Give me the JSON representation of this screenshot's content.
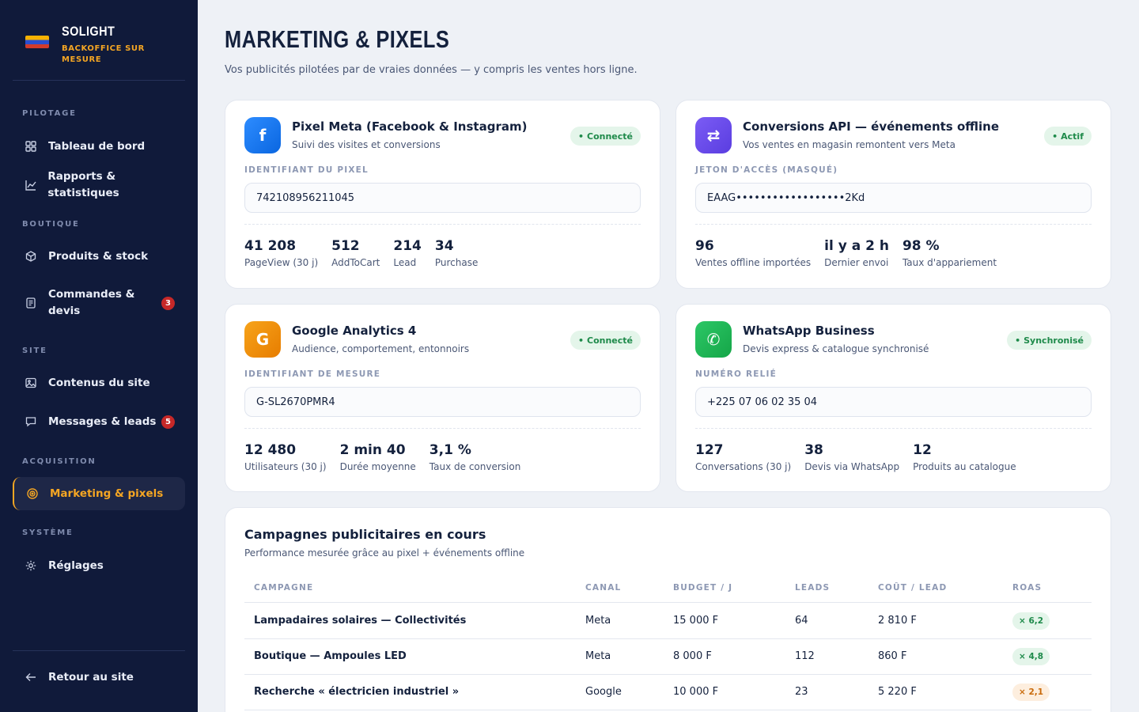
{
  "brand": {
    "name": "SOLIGHT",
    "subtitle": "BACKOFFICE SUR MESURE"
  },
  "sidebar": {
    "sections": {
      "pilotage": "PILOTAGE",
      "boutique": "BOUTIQUE",
      "site": "SITE",
      "acquisition": "ACQUISITION",
      "systeme": "SYSTÈME"
    },
    "items": [
      {
        "label": "Tableau de bord",
        "icon": "dashboard-icon"
      },
      {
        "label": "Rapports & statistiques",
        "icon": "chart-icon"
      },
      {
        "label": "Produits & stock",
        "icon": "box-icon"
      },
      {
        "label": "Commandes & devis",
        "icon": "document-icon",
        "badge": "3"
      },
      {
        "label": "Contenus du site",
        "icon": "image-icon"
      },
      {
        "label": "Messages & leads",
        "icon": "message-icon",
        "badge": "5"
      },
      {
        "label": "Marketing & pixels",
        "icon": "target-icon",
        "active": true
      },
      {
        "label": "Réglages",
        "icon": "gear-icon"
      }
    ],
    "back": {
      "label": "Retour au site",
      "icon": "arrow-left-icon"
    }
  },
  "header": {
    "title": "MARKETING & PIXELS",
    "subtitle": "Vos publicités pilotées par de vraies données — y compris les ventes hors ligne."
  },
  "cards": [
    {
      "title": "Pixel Meta (Facebook & Instagram)",
      "subtitle": "Suivi des visites et conversions",
      "status": "Connecté",
      "icon_glyph": "f",
      "icon_color": "#1877f2",
      "field_label": "IDENTIFIANT DU PIXEL",
      "field_value": "742108956211045",
      "stats": [
        {
          "value": "41 208",
          "label": "PageView (30 j)"
        },
        {
          "value": "512",
          "label": "AddToCart"
        },
        {
          "value": "214",
          "label": "Lead"
        },
        {
          "value": "34",
          "label": "Purchase"
        }
      ]
    },
    {
      "title": "Conversions API — événements offline",
      "subtitle": "Vos ventes en magasin remontent vers Meta",
      "status": "Actif",
      "icon_glyph": "⇄",
      "icon_color": "#6a4cf0",
      "field_label": "JETON D'ACCÈS (MASQUÉ)",
      "field_value": "EAAG••••••••••••••••••2Kd",
      "stats": [
        {
          "value": "96",
          "label": "Ventes offline importées"
        },
        {
          "value": "il y a 2 h",
          "label": "Dernier envoi"
        },
        {
          "value": "98 %",
          "label": "Taux d'appariement"
        }
      ]
    },
    {
      "title": "Google Analytics 4",
      "subtitle": "Audience, comportement, entonnoirs",
      "status": "Connecté",
      "icon_glyph": "G",
      "icon_color": "#f08c00",
      "field_label": "IDENTIFIANT DE MESURE",
      "field_value": "G-SL2670PMR4",
      "stats": [
        {
          "value": "12 480",
          "label": "Utilisateurs (30 j)"
        },
        {
          "value": "2 min 40",
          "label": "Durée moyenne"
        },
        {
          "value": "3,1 %",
          "label": "Taux de conversion"
        }
      ]
    },
    {
      "title": "WhatsApp Business",
      "subtitle": "Devis express & catalogue synchronisé",
      "status": "Synchronisé",
      "icon_glyph": "✆",
      "icon_color": "#1fb955",
      "field_label": "NUMÉRO RELIÉ",
      "field_value": "+225 07 06 02 35 04",
      "stats": [
        {
          "value": "127",
          "label": "Conversations (30 j)"
        },
        {
          "value": "38",
          "label": "Devis via WhatsApp"
        },
        {
          "value": "12",
          "label": "Produits au catalogue"
        }
      ]
    }
  ],
  "campaigns": {
    "title": "Campagnes publicitaires en cours",
    "subtitle": "Performance mesurée grâce au pixel + événements offline",
    "columns": [
      "CAMPAGNE",
      "CANAL",
      "BUDGET / J",
      "LEADS",
      "COÛT / LEAD",
      "ROAS"
    ],
    "rows": [
      {
        "campagne": "Lampadaires solaires — Collectivités",
        "canal": "Meta",
        "budget": "15 000 F",
        "leads": "64",
        "cout": "2 810 F",
        "roas": "× 6,2",
        "roas_status": "good"
      },
      {
        "campagne": "Boutique — Ampoules LED",
        "canal": "Meta",
        "budget": "8 000 F",
        "leads": "112",
        "cout": "860 F",
        "roas": "× 4,8",
        "roas_status": "good"
      },
      {
        "campagne": "Recherche « électricien industriel »",
        "canal": "Google",
        "budget": "10 000 F",
        "leads": "23",
        "cout": "5 220 F",
        "roas": "× 2,1",
        "roas_status": "warn"
      }
    ]
  }
}
